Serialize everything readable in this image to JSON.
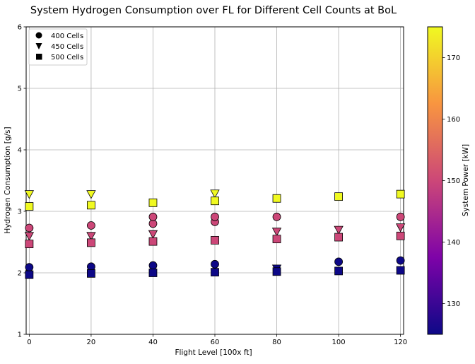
{
  "chart_data": {
    "type": "scatter",
    "title": "System Hydrogen Consumption over FL for Different Cell Counts at BoL",
    "xlabel": "Flight Level [100x ft]",
    "ylabel": "Hydrogen Consumption [g/s]",
    "xlim": [
      -1,
      121
    ],
    "ylim": [
      1,
      6
    ],
    "xticks": [
      0,
      20,
      40,
      60,
      80,
      100,
      120
    ],
    "yticks": [
      1,
      2,
      3,
      4,
      5,
      6
    ],
    "grid": true,
    "legend_position": "top-left",
    "legend": [
      {
        "label": "400 Cells",
        "marker": "circle"
      },
      {
        "label": "450 Cells",
        "marker": "triangle-down"
      },
      {
        "label": "500 Cells",
        "marker": "square"
      }
    ],
    "colorbar": {
      "label": "System Power [kW]",
      "range": [
        125,
        175
      ],
      "ticks": [
        130,
        140,
        150,
        160,
        170
      ],
      "colormap": "plasma"
    },
    "series": [
      {
        "name": "400 Cells",
        "marker": "circle",
        "points": [
          {
            "x": 0,
            "y": 2.09,
            "power": 125
          },
          {
            "x": 0,
            "y": 2.73,
            "power": 150
          },
          {
            "x": 20,
            "y": 2.1,
            "power": 125
          },
          {
            "x": 20,
            "y": 2.77,
            "power": 150
          },
          {
            "x": 40,
            "y": 2.12,
            "power": 125
          },
          {
            "x": 40,
            "y": 2.8,
            "power": 150
          },
          {
            "x": 40,
            "y": 2.91,
            "power": 150
          },
          {
            "x": 60,
            "y": 2.14,
            "power": 125
          },
          {
            "x": 60,
            "y": 2.83,
            "power": 150
          },
          {
            "x": 60,
            "y": 2.91,
            "power": 150
          },
          {
            "x": 80,
            "y": 2.91,
            "power": 150
          },
          {
            "x": 100,
            "y": 2.18,
            "power": 125
          },
          {
            "x": 120,
            "y": 2.2,
            "power": 125
          },
          {
            "x": 120,
            "y": 2.91,
            "power": 150
          }
        ]
      },
      {
        "name": "450 Cells",
        "marker": "triangle-down",
        "points": [
          {
            "x": 0,
            "y": 3.28,
            "power": 175
          },
          {
            "x": 0,
            "y": 2.6,
            "power": 150
          },
          {
            "x": 20,
            "y": 3.28,
            "power": 175
          },
          {
            "x": 20,
            "y": 2.6,
            "power": 150
          },
          {
            "x": 40,
            "y": 2.63,
            "power": 150
          },
          {
            "x": 60,
            "y": 3.29,
            "power": 175
          },
          {
            "x": 80,
            "y": 2.07,
            "power": 125
          },
          {
            "x": 80,
            "y": 2.67,
            "power": 150
          },
          {
            "x": 100,
            "y": 2.7,
            "power": 150
          },
          {
            "x": 120,
            "y": 2.74,
            "power": 150
          }
        ]
      },
      {
        "name": "500 Cells",
        "marker": "square",
        "points": [
          {
            "x": 0,
            "y": 1.97,
            "power": 125
          },
          {
            "x": 0,
            "y": 2.47,
            "power": 150
          },
          {
            "x": 0,
            "y": 3.08,
            "power": 175
          },
          {
            "x": 20,
            "y": 1.99,
            "power": 125
          },
          {
            "x": 20,
            "y": 2.49,
            "power": 150
          },
          {
            "x": 20,
            "y": 3.1,
            "power": 175
          },
          {
            "x": 40,
            "y": 2.0,
            "power": 125
          },
          {
            "x": 40,
            "y": 2.51,
            "power": 150
          },
          {
            "x": 40,
            "y": 3.14,
            "power": 175
          },
          {
            "x": 60,
            "y": 2.01,
            "power": 125
          },
          {
            "x": 60,
            "y": 2.53,
            "power": 150
          },
          {
            "x": 60,
            "y": 3.17,
            "power": 175
          },
          {
            "x": 80,
            "y": 2.02,
            "power": 125
          },
          {
            "x": 80,
            "y": 2.55,
            "power": 150
          },
          {
            "x": 80,
            "y": 3.21,
            "power": 175
          },
          {
            "x": 100,
            "y": 2.03,
            "power": 125
          },
          {
            "x": 100,
            "y": 2.58,
            "power": 150
          },
          {
            "x": 100,
            "y": 3.24,
            "power": 175
          },
          {
            "x": 120,
            "y": 2.04,
            "power": 125
          },
          {
            "x": 120,
            "y": 2.6,
            "power": 150
          },
          {
            "x": 120,
            "y": 3.28,
            "power": 175
          }
        ]
      }
    ]
  }
}
